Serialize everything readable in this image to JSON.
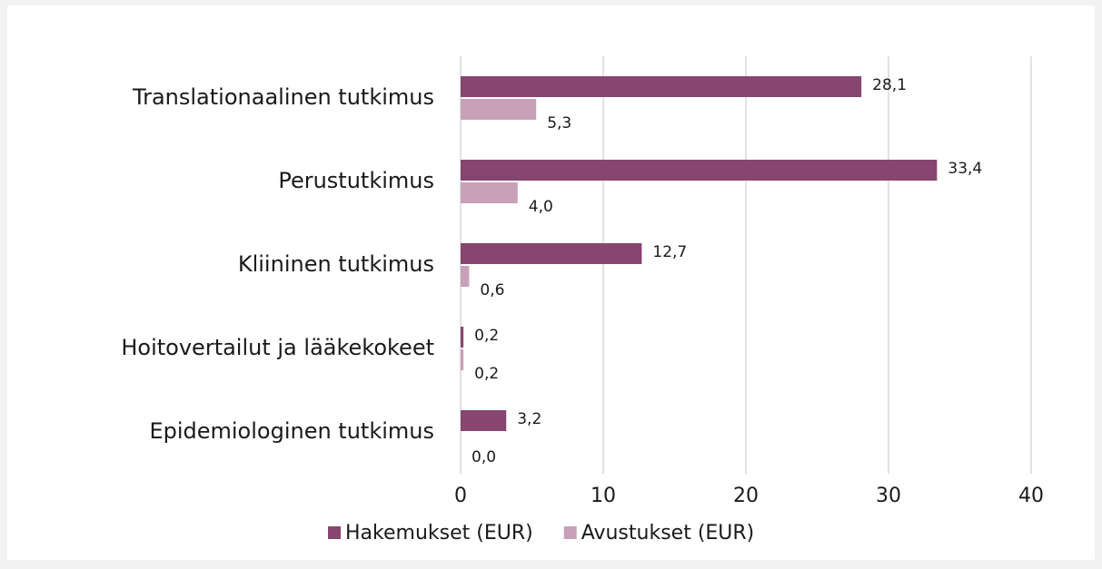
{
  "chart_data": {
    "type": "hbar",
    "categories": [
      "Translationaalinen tutkimus",
      "Perustutkimus",
      "Kliininen tutkimus",
      "Hoitovertailut ja lääkekokeet",
      "Epidemiologinen tutkimus"
    ],
    "series": [
      {
        "name": "Hakemukset (EUR)",
        "color": "#86466f",
        "values": [
          28.1,
          33.4,
          12.7,
          0.2,
          3.2
        ],
        "value_labels": [
          "28,1",
          "33,4",
          "12,7",
          "0,2",
          "3,2"
        ]
      },
      {
        "name": "Avustukset (EUR)",
        "color": "#c9a0b9",
        "values": [
          5.3,
          4.0,
          0.6,
          0.2,
          0.0
        ],
        "value_labels": [
          "5,3",
          "4,0",
          "0,6",
          "0,2",
          "0,0"
        ]
      }
    ],
    "xlim": [
      0,
      40
    ],
    "xticks": [
      0,
      10,
      20,
      30,
      40
    ],
    "grid": true,
    "legend": "bottom"
  }
}
